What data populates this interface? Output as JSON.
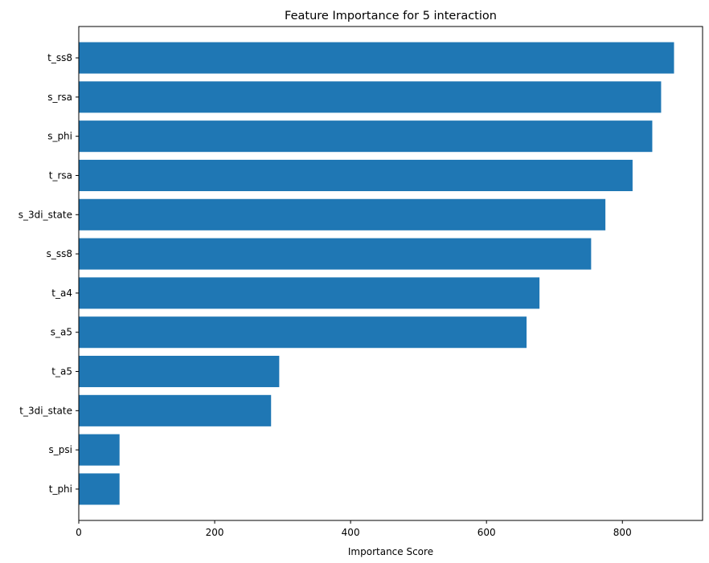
{
  "chart_data": {
    "type": "bar",
    "orientation": "horizontal",
    "title": "Feature Importance for 5 interaction",
    "xlabel": "Importance Score",
    "ylabel": "",
    "xlim": [
      0,
      918
    ],
    "xticks": [
      0,
      200,
      400,
      600,
      800
    ],
    "grid": false,
    "bar_color": "#1f77b4",
    "categories": [
      "t_ss8",
      "s_rsa",
      "s_phi",
      "t_rsa",
      "s_3di_state",
      "s_ss8",
      "t_a4",
      "s_a5",
      "t_a5",
      "t_3di_state",
      "s_psi",
      "t_phi"
    ],
    "values": [
      876,
      857,
      844,
      815,
      775,
      754,
      678,
      659,
      295,
      283,
      60,
      60
    ]
  }
}
